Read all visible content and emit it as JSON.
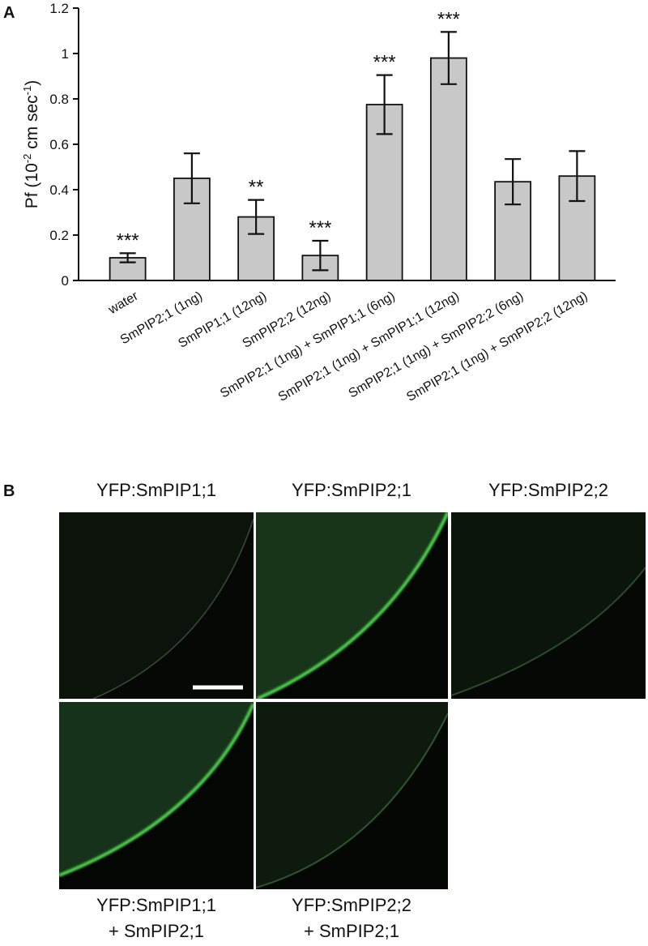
{
  "chart_data": {
    "type": "bar",
    "panel_label": "A",
    "ylabel": {
      "text": [
        "Pf (10",
        " cm sec",
        ")"
      ],
      "superscripts": [
        "-2",
        "-1"
      ]
    },
    "categories": [
      "water",
      "SmPIP2;1 (1ng)",
      "SmPIP1;1 (12ng)",
      "SmPIP2;2 (12ng)",
      "SmPIP2;1 (1ng) + SmPIP1;1 (6ng)",
      "SmPIP2;1 (1ng) + SmPIP1;1 (12ng)",
      "SmPIP2;1 (1ng) + SmPIP2;2 (6ng)",
      "SmPIP2;1 (1ng) + SmPIP2;2 (12ng)"
    ],
    "values": [
      0.1,
      0.45,
      0.28,
      0.11,
      0.775,
      0.98,
      0.435,
      0.46
    ],
    "errors": [
      0.02,
      0.11,
      0.075,
      0.065,
      0.13,
      0.115,
      0.1,
      0.11
    ],
    "significance": [
      "***",
      null,
      "**",
      "***",
      "***",
      "***",
      null,
      null
    ],
    "color": "#c8c8c8",
    "ylim": [
      0,
      1.2
    ],
    "yticks": [
      0,
      0.2,
      0.4,
      0.6,
      0.8,
      1,
      1.2
    ]
  },
  "panel_b": {
    "panel_label": "B",
    "titles": [
      "YFP:SmPIP1;1",
      "YFP:SmPIP2;1",
      "YFP:SmPIP2;2"
    ],
    "captions": [
      [
        "YFP:SmPIP1;1",
        "+ SmPIP2;1"
      ],
      [
        "YFP:SmPIP2;2",
        "+ SmPIP2;1"
      ]
    ]
  }
}
